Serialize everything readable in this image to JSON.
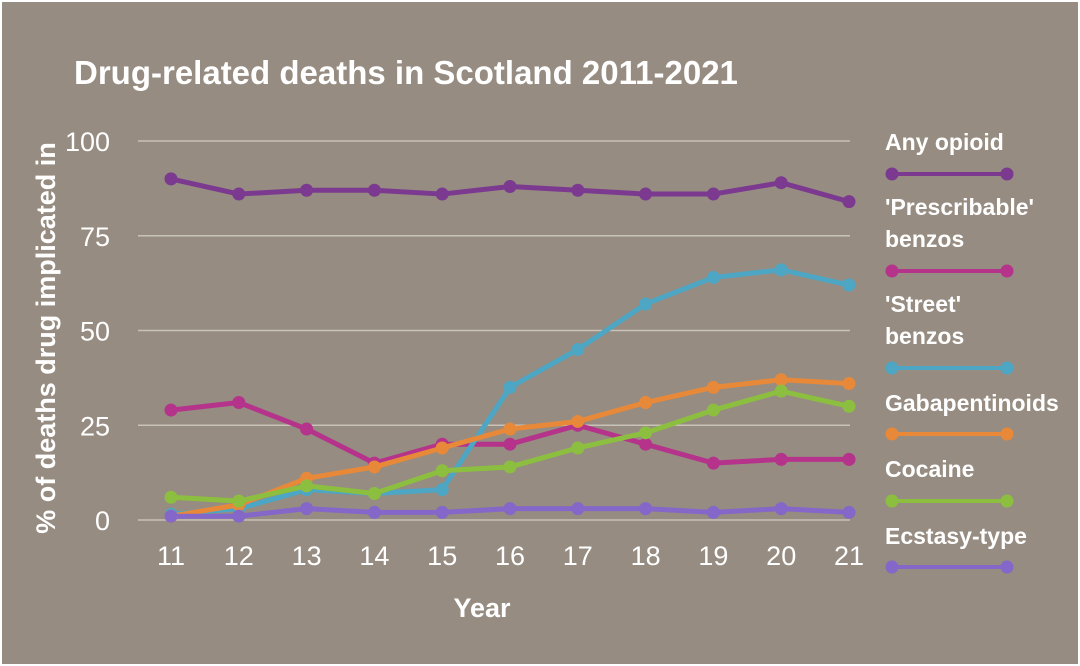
{
  "chart_data": {
    "type": "line",
    "title": "Drug-related deaths in Scotland 2011-2021",
    "xlabel": "Year",
    "ylabel": "% of deaths drug implicated in",
    "x": [
      "11",
      "12",
      "13",
      "14",
      "15",
      "16",
      "17",
      "18",
      "19",
      "20",
      "21"
    ],
    "yticks": [
      "0",
      "25",
      "50",
      "75",
      "100"
    ],
    "ylim": [
      0,
      100
    ],
    "grid": "horizontal",
    "legend": "right",
    "series": [
      {
        "name": "Any opioid",
        "color": "#7b3a8f",
        "values": [
          90,
          86,
          87,
          87,
          86,
          88,
          87,
          86,
          86,
          89,
          84
        ]
      },
      {
        "name": "'Prescribable' benzos",
        "color": "#b5338a",
        "values": [
          29,
          31,
          24,
          15,
          20,
          20,
          25,
          20,
          15,
          16,
          16
        ]
      },
      {
        "name": "'Street' benzos",
        "color": "#4ca6c4",
        "values": [
          1.5,
          3,
          8,
          7,
          8,
          35,
          45,
          57,
          64,
          66,
          62
        ]
      },
      {
        "name": "Gabapentinoids",
        "color": "#e8893a",
        "values": [
          1,
          4,
          11,
          14,
          19,
          24,
          26,
          31,
          35,
          37,
          36
        ]
      },
      {
        "name": "Cocaine",
        "color": "#8cbf3f",
        "values": [
          6,
          5,
          9,
          7,
          13,
          14,
          19,
          23,
          29,
          34,
          30
        ]
      },
      {
        "name": "Ecstasy-type",
        "color": "#8467c8",
        "values": [
          1,
          1,
          3,
          2,
          2,
          3,
          3,
          3,
          2,
          3,
          2
        ]
      }
    ]
  }
}
